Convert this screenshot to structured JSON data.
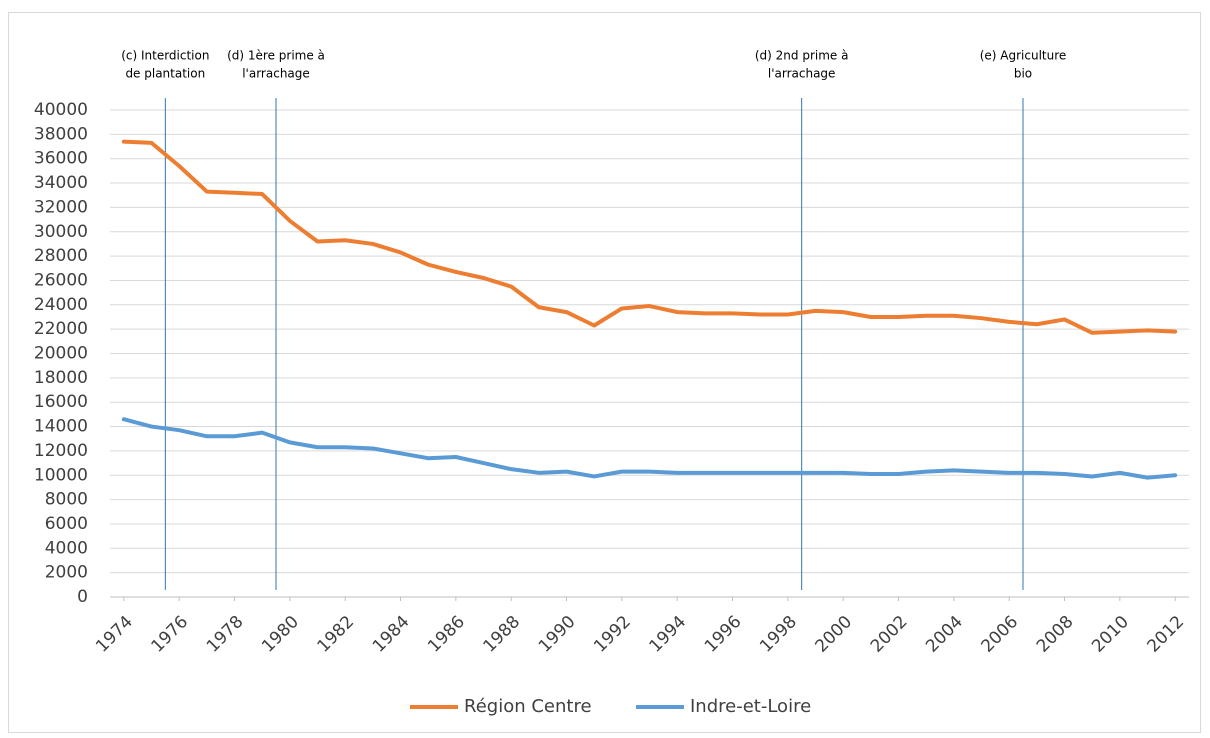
{
  "chart_data": {
    "type": "line",
    "x": [
      1974,
      1975,
      1976,
      1977,
      1978,
      1979,
      1980,
      1981,
      1982,
      1983,
      1984,
      1985,
      1986,
      1987,
      1988,
      1989,
      1990,
      1991,
      1992,
      1993,
      1994,
      1995,
      1996,
      1997,
      1998,
      1999,
      2000,
      2001,
      2002,
      2003,
      2004,
      2005,
      2006,
      2007,
      2008,
      2009,
      2010,
      2011,
      2012
    ],
    "xlim": [
      1973.5,
      2012.5
    ],
    "xticks": [
      1974,
      1976,
      1978,
      1980,
      1982,
      1984,
      1986,
      1988,
      1990,
      1992,
      1994,
      1996,
      1998,
      2000,
      2002,
      2004,
      2006,
      2008,
      2010,
      2012
    ],
    "ylim": [
      0,
      40000
    ],
    "yticks": [
      0,
      2000,
      4000,
      6000,
      8000,
      10000,
      12000,
      14000,
      16000,
      18000,
      20000,
      22000,
      24000,
      26000,
      28000,
      30000,
      32000,
      34000,
      36000,
      38000,
      40000
    ],
    "grid": true,
    "legend": "bottom",
    "series": [
      {
        "name": "Région Centre",
        "color": "#ED7D31",
        "values": [
          37400,
          37300,
          35400,
          33300,
          33200,
          33100,
          30900,
          29200,
          29300,
          29000,
          28300,
          27300,
          26700,
          26200,
          25500,
          23800,
          23400,
          22300,
          23700,
          23900,
          23400,
          23300,
          23300,
          23200,
          23200,
          23500,
          23400,
          23000,
          23000,
          23100,
          23100,
          22900,
          22600,
          22400,
          22800,
          21700,
          21800,
          21900,
          21800
        ]
      },
      {
        "name": "Indre-et-Loire",
        "color": "#5B9BD5",
        "values": [
          14600,
          14000,
          13700,
          13200,
          13200,
          13500,
          12700,
          12300,
          12300,
          12200,
          11800,
          11400,
          11500,
          11000,
          10500,
          10200,
          10300,
          9900,
          10300,
          10300,
          10200,
          10200,
          10200,
          10200,
          10200,
          10200,
          10200,
          10100,
          10100,
          10300,
          10400,
          10300,
          10200,
          10200,
          10100,
          9900,
          10200,
          9800,
          10000
        ]
      }
    ],
    "annotations": [
      {
        "x": 1975.5,
        "text": [
          "(c) Interdiction",
          "de plantation"
        ]
      },
      {
        "x": 1979.5,
        "text": [
          "(d) 1ère prime à",
          "l'arrachage"
        ]
      },
      {
        "x": 1998.5,
        "text": [
          "(d) 2nd prime à",
          "l'arrachage"
        ]
      },
      {
        "x": 2006.5,
        "text": [
          "(e) Agriculture",
          "bio"
        ]
      }
    ]
  }
}
